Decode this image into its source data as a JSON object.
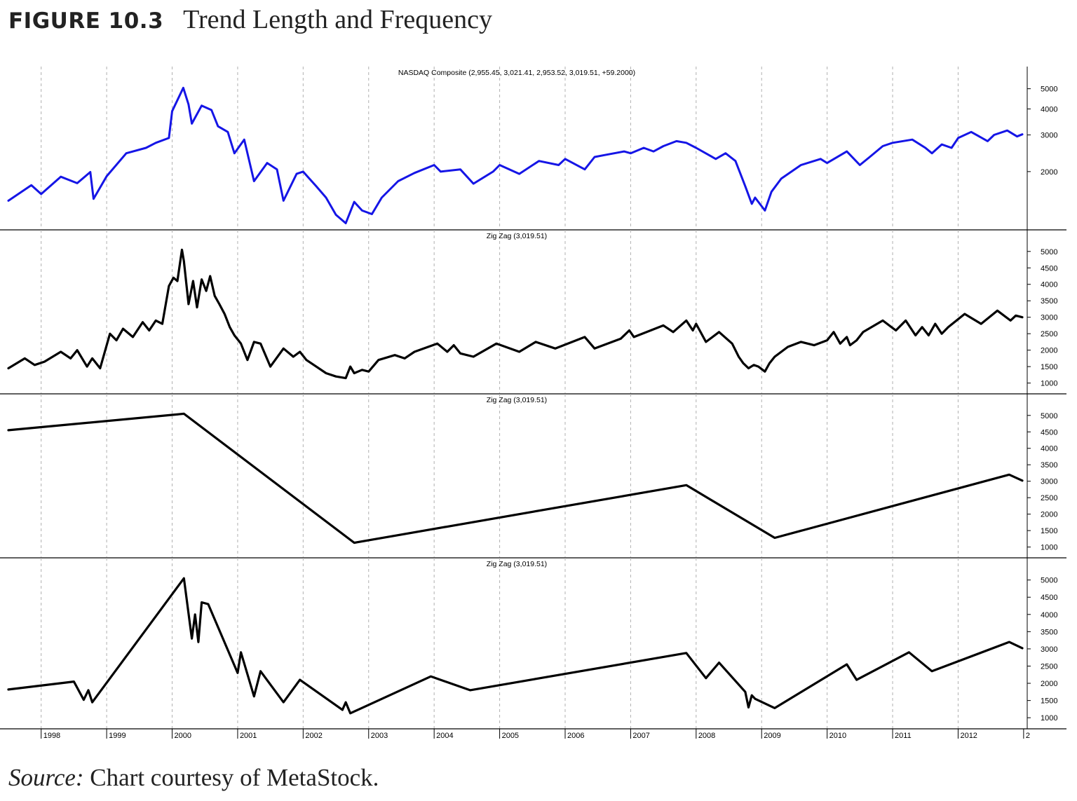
{
  "figure": {
    "label": "FIGURE 10.3",
    "title": "Trend Length and Frequency"
  },
  "source": {
    "label": "Source:",
    "text": "Chart courtesy of MetaStock."
  },
  "colors": {
    "price_line": "#1515e6",
    "zigzag_line": "#000000",
    "grid": "#b0b0b0",
    "axis": "#000000"
  },
  "chart_data": [
    {
      "type": "line",
      "title": "NASDAQ Composite (2,955.45, 3,021.41, 2,953.52, 3,019.51, +59.2000)",
      "scale": "log",
      "ylim": [
        1100,
        5600
      ],
      "yticks": [
        2000,
        3000,
        4000,
        5000
      ],
      "grid": "vertical-dashed",
      "series": [
        {
          "color": "#1515e6",
          "x": [
            1997.5,
            1997.85,
            1998.0,
            1998.3,
            1998.55,
            1998.75,
            1998.8,
            1999.0,
            1999.3,
            1999.6,
            1999.75,
            1999.95,
            2000.0,
            2000.17,
            2000.25,
            2000.3,
            2000.45,
            2000.6,
            2000.7,
            2000.85,
            2000.95,
            2001.1,
            2001.25,
            2001.45,
            2001.6,
            2001.7,
            2001.9,
            2002.0,
            2002.2,
            2002.35,
            2002.5,
            2002.65,
            2002.78,
            2002.9,
            2003.05,
            2003.2,
            2003.45,
            2003.7,
            2004.0,
            2004.1,
            2004.4,
            2004.6,
            2004.9,
            2005.0,
            2005.3,
            2005.6,
            2005.9,
            2006.0,
            2006.3,
            2006.45,
            2006.6,
            2006.9,
            2007.0,
            2007.2,
            2007.35,
            2007.5,
            2007.7,
            2007.85,
            2008.0,
            2008.3,
            2008.45,
            2008.6,
            2008.75,
            2008.85,
            2008.9,
            2009.05,
            2009.15,
            2009.3,
            2009.6,
            2009.9,
            2010.0,
            2010.3,
            2010.5,
            2010.65,
            2010.85,
            2011.0,
            2011.3,
            2011.5,
            2011.6,
            2011.75,
            2011.9,
            2012.0,
            2012.2,
            2012.45,
            2012.55,
            2012.75,
            2012.9,
            2012.98
          ],
          "values": [
            1450,
            1720,
            1560,
            1890,
            1760,
            1990,
            1480,
            1900,
            2450,
            2600,
            2750,
            2900,
            3900,
            5050,
            4200,
            3400,
            4150,
            3950,
            3300,
            3100,
            2450,
            2850,
            1800,
            2200,
            2050,
            1450,
            1950,
            2000,
            1700,
            1500,
            1240,
            1130,
            1430,
            1300,
            1250,
            1500,
            1800,
            1970,
            2150,
            2000,
            2050,
            1750,
            2000,
            2150,
            1950,
            2250,
            2150,
            2300,
            2050,
            2350,
            2400,
            2500,
            2450,
            2600,
            2500,
            2650,
            2800,
            2750,
            2600,
            2300,
            2450,
            2250,
            1700,
            1400,
            1500,
            1300,
            1600,
            1850,
            2150,
            2300,
            2200,
            2500,
            2150,
            2350,
            2650,
            2750,
            2850,
            2600,
            2450,
            2700,
            2600,
            2900,
            3100,
            2800,
            3000,
            3150,
            2950,
            3020
          ]
        }
      ]
    },
    {
      "type": "line",
      "title": "Zig Zag (3,019.51)",
      "ylim": [
        800,
        5400
      ],
      "yticks": [
        1000,
        1500,
        2000,
        2500,
        3000,
        3500,
        4000,
        4500,
        5000
      ],
      "grid": "vertical-dashed",
      "series": [
        {
          "color": "#000000",
          "x": [
            1997.5,
            1997.75,
            1997.9,
            1998.05,
            1998.3,
            1998.45,
            1998.55,
            1998.7,
            1998.78,
            1998.9,
            1999.05,
            1999.15,
            1999.25,
            1999.4,
            1999.55,
            1999.65,
            1999.75,
            1999.85,
            1999.95,
            2000.02,
            2000.08,
            2000.15,
            2000.18,
            2000.25,
            2000.32,
            2000.38,
            2000.45,
            2000.52,
            2000.58,
            2000.65,
            2000.72,
            2000.8,
            2000.88,
            2000.95,
            2001.05,
            2001.15,
            2001.25,
            2001.35,
            2001.5,
            2001.7,
            2001.85,
            2001.95,
            2002.05,
            2002.2,
            2002.35,
            2002.5,
            2002.65,
            2002.72,
            2002.78,
            2002.9,
            2003.0,
            2003.15,
            2003.4,
            2003.55,
            2003.7,
            2004.05,
            2004.2,
            2004.3,
            2004.4,
            2004.6,
            2004.95,
            2005.3,
            2005.55,
            2005.85,
            2006.3,
            2006.45,
            2006.85,
            2006.98,
            2007.05,
            2007.5,
            2007.65,
            2007.85,
            2007.95,
            2008.0,
            2008.15,
            2008.35,
            2008.55,
            2008.65,
            2008.72,
            2008.8,
            2008.88,
            2008.95,
            2009.05,
            2009.12,
            2009.2,
            2009.4,
            2009.6,
            2009.8,
            2010.0,
            2010.1,
            2010.2,
            2010.3,
            2010.35,
            2010.45,
            2010.55,
            2010.85,
            2011.05,
            2011.2,
            2011.35,
            2011.45,
            2011.55,
            2011.65,
            2011.75,
            2011.85,
            2012.1,
            2012.35,
            2012.6,
            2012.8,
            2012.88,
            2012.98
          ],
          "values": [
            1450,
            1750,
            1550,
            1650,
            1950,
            1750,
            2000,
            1500,
            1750,
            1450,
            2500,
            2300,
            2650,
            2400,
            2850,
            2600,
            2900,
            2800,
            3950,
            4200,
            4100,
            5050,
            4700,
            3400,
            4100,
            3300,
            4150,
            3800,
            4250,
            3650,
            3400,
            3100,
            2700,
            2450,
            2200,
            1700,
            2250,
            2200,
            1500,
            2050,
            1800,
            1950,
            1700,
            1500,
            1300,
            1200,
            1150,
            1500,
            1300,
            1400,
            1350,
            1700,
            1850,
            1750,
            1950,
            2200,
            1950,
            2150,
            1900,
            1800,
            2200,
            1950,
            2250,
            2050,
            2400,
            2050,
            2350,
            2600,
            2400,
            2750,
            2550,
            2900,
            2600,
            2800,
            2250,
            2550,
            2200,
            1800,
            1600,
            1450,
            1550,
            1500,
            1350,
            1600,
            1800,
            2100,
            2250,
            2150,
            2300,
            2550,
            2200,
            2400,
            2150,
            2300,
            2550,
            2900,
            2600,
            2900,
            2450,
            2700,
            2450,
            2800,
            2500,
            2700,
            3100,
            2800,
            3200,
            2900,
            3050,
            3000
          ]
        }
      ]
    },
    {
      "type": "line",
      "title": "Zig Zag (3,019.51)",
      "ylim": [
        800,
        5400
      ],
      "yticks": [
        1000,
        1500,
        2000,
        2500,
        3000,
        3500,
        4000,
        4500,
        5000
      ],
      "grid": "vertical-dashed",
      "series": [
        {
          "color": "#000000",
          "x": [
            1997.5,
            2000.18,
            2002.78,
            2007.85,
            2009.2,
            2012.78,
            2012.98
          ],
          "values": [
            4550,
            5050,
            1130,
            2880,
            1280,
            3200,
            3020
          ]
        }
      ]
    },
    {
      "type": "line",
      "title": "Zig Zag (3,019.51)",
      "ylim": [
        800,
        5400
      ],
      "yticks": [
        1000,
        1500,
        2000,
        2500,
        3000,
        3500,
        4000,
        4500,
        5000
      ],
      "xticks": [
        "1998",
        "1999",
        "2000",
        "2001",
        "2002",
        "2003",
        "2004",
        "2005",
        "2006",
        "2007",
        "2008",
        "2009",
        "2010",
        "2011",
        "2012",
        "2"
      ],
      "grid": "vertical-dashed",
      "series": [
        {
          "color": "#000000",
          "x": [
            1997.5,
            1998.5,
            1998.65,
            1998.72,
            1998.78,
            2000.18,
            2000.3,
            2000.35,
            2000.4,
            2000.45,
            2000.55,
            2001.0,
            2001.05,
            2001.25,
            2001.35,
            2001.7,
            2001.95,
            2002.6,
            2002.65,
            2002.72,
            2003.95,
            2004.55,
            2007.85,
            2008.15,
            2008.35,
            2008.75,
            2008.8,
            2008.85,
            2008.9,
            2009.2,
            2010.3,
            2010.45,
            2011.25,
            2011.6,
            2012.78,
            2012.98
          ],
          "values": [
            1820,
            2050,
            1520,
            1800,
            1450,
            5050,
            3300,
            4000,
            3200,
            4350,
            4300,
            2300,
            2900,
            1620,
            2350,
            1450,
            2100,
            1230,
            1450,
            1130,
            2200,
            1800,
            2880,
            2150,
            2600,
            1750,
            1300,
            1650,
            1550,
            1280,
            2550,
            2100,
            2900,
            2350,
            3200,
            3020
          ]
        }
      ]
    }
  ]
}
